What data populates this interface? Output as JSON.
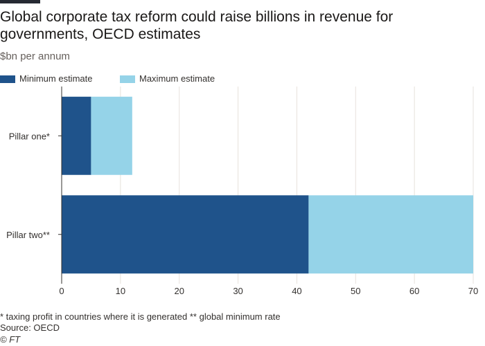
{
  "header": {
    "title": "Global corporate tax reform could raise billions in revenue for governments, OECD estimates",
    "subtitle": "$bn per annum"
  },
  "footer": {
    "note": "* taxing profit in countries where it is generated ** global minimum rate",
    "source": "Source: OECD",
    "credit": "© FT"
  },
  "colors": {
    "minimum": "#1f538b",
    "maximum": "#95d3e8",
    "grid": "#e6e1dc",
    "axis": "#33302e"
  },
  "chart_data": {
    "type": "bar",
    "orientation": "horizontal",
    "stacked": true,
    "categories": [
      "Pillar one*",
      "Pillar two**"
    ],
    "series": [
      {
        "name": "Minimum estimate",
        "values": [
          5,
          42
        ]
      },
      {
        "name": "Maximum estimate",
        "values": [
          7,
          28
        ]
      }
    ],
    "totals": [
      12,
      70
    ],
    "xlim": [
      0,
      70
    ],
    "xticks": [
      0,
      10,
      20,
      30,
      40,
      50,
      60,
      70
    ],
    "xlabel": "",
    "ylabel": "",
    "grid": true,
    "legend": "top-left"
  }
}
